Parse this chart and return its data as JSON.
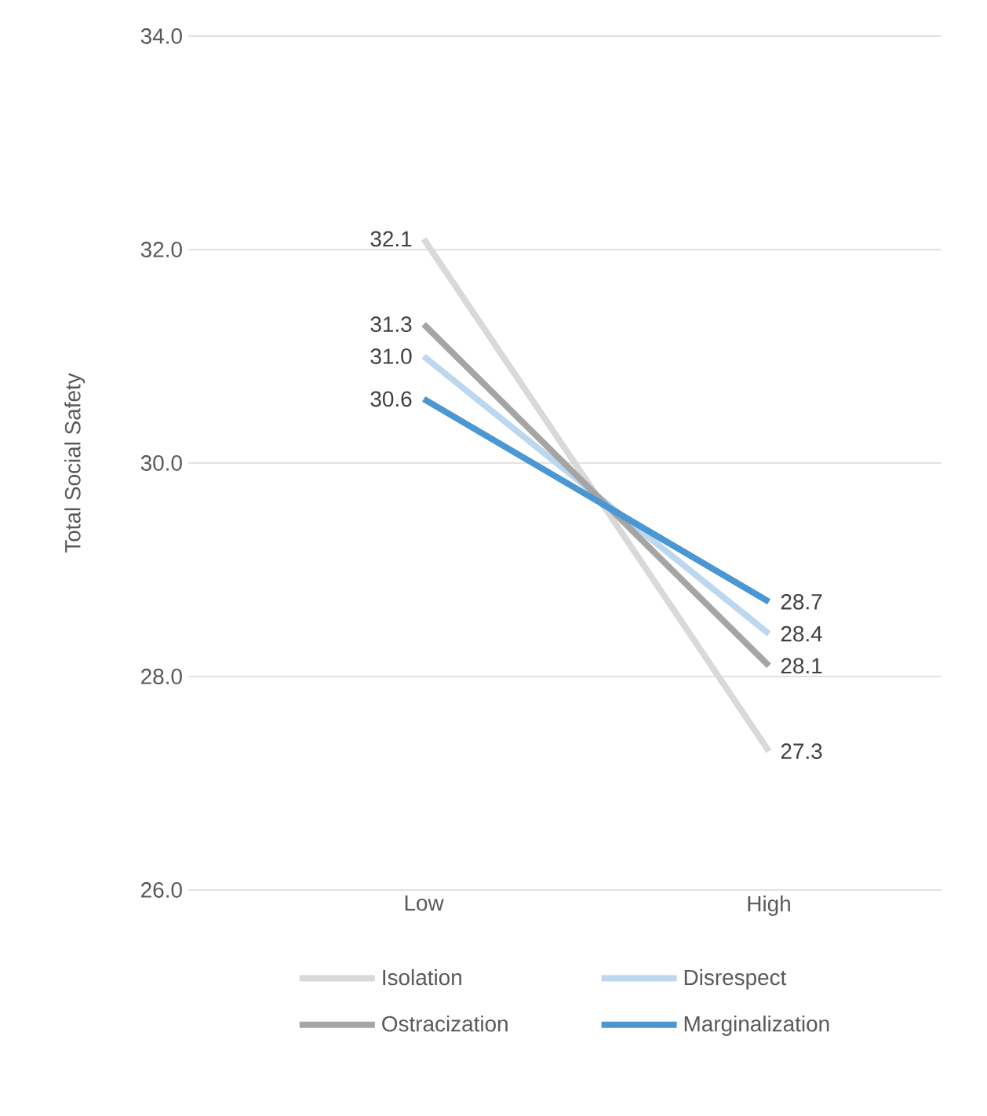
{
  "chart_data": {
    "type": "line",
    "ylabel": "Total Social Safety",
    "categories": [
      "Low",
      "High"
    ],
    "series": [
      {
        "name": "Isolation",
        "color": "#d9d9d9",
        "values": [
          32.1,
          27.3
        ],
        "value_labels": [
          "32.1",
          "27.3"
        ]
      },
      {
        "name": "Disrespect",
        "color": "#bdd7ee",
        "values": [
          31.0,
          28.4
        ],
        "value_labels": [
          "31.0",
          "28.4"
        ]
      },
      {
        "name": "Ostracization",
        "color": "#a5a5a5",
        "values": [
          31.3,
          28.1
        ],
        "value_labels": [
          "31.3",
          "28.1"
        ]
      },
      {
        "name": "Marginalization",
        "color": "#4a97d4",
        "values": [
          30.6,
          28.7
        ],
        "value_labels": [
          "30.6",
          "28.7"
        ]
      }
    ],
    "ylim": [
      26,
      34
    ],
    "yticks": [
      {
        "value": 26,
        "label": "26.0"
      },
      {
        "value": 28,
        "label": "28.0"
      },
      {
        "value": 30,
        "label": "30.0"
      },
      {
        "value": 32,
        "label": "32.0"
      },
      {
        "value": 34,
        "label": "34.0"
      }
    ],
    "grid": "y",
    "legend": "bottom",
    "marker": "none",
    "line_style": "solid"
  }
}
